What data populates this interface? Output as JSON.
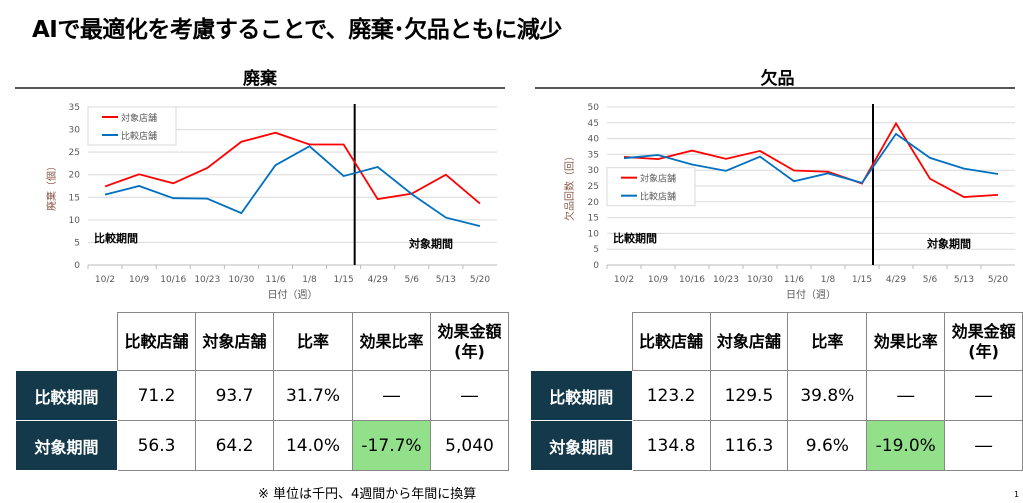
{
  "title": "AIで最適化を考慮することで、廃棄･欠品ともに減少",
  "footnote": "※ 単位は千円、4週間から年間に換算",
  "page_number": "1",
  "chart_data": [
    {
      "type": "line",
      "title": "廃棄",
      "xlabel": "日付（週）",
      "ylabel": "廃棄（個）",
      "ylim": [
        0,
        35
      ],
      "ystep": 5,
      "categories": [
        "10/2",
        "10/9",
        "10/16",
        "10/23",
        "10/30",
        "11/6",
        "1/8",
        "1/15",
        "4/29",
        "5/6",
        "5/13",
        "5/20"
      ],
      "divider_after_index": 7,
      "period_labels": [
        "比較期間",
        "対象期間"
      ],
      "legend": "top-left",
      "series": [
        {
          "name": "対象店舗",
          "color": "#ff0000",
          "values": [
            17.4,
            20.1,
            18.1,
            21.5,
            27.3,
            29.3,
            26.7,
            26.7,
            14.6,
            15.8,
            20.0,
            13.6
          ]
        },
        {
          "name": "比較店舗",
          "color": "#0070c0",
          "values": [
            15.6,
            17.5,
            14.8,
            14.7,
            11.5,
            22.1,
            26.3,
            19.7,
            21.7,
            15.7,
            10.5,
            8.6
          ]
        }
      ]
    },
    {
      "type": "line",
      "title": "欠品",
      "xlabel": "日付（週）",
      "ylabel": "欠品回数（回）",
      "ylim": [
        0,
        50
      ],
      "ystep": 5,
      "categories": [
        "10/2",
        "10/9",
        "10/16",
        "10/23",
        "10/30",
        "11/6",
        "1/8",
        "1/15",
        "4/29",
        "5/6",
        "5/13",
        "5/20"
      ],
      "divider_after_index": 7,
      "period_labels": [
        "比較期間",
        "対象期間"
      ],
      "legend": "middle-left",
      "series": [
        {
          "name": "対象店舗",
          "color": "#ff0000",
          "values": [
            34.2,
            33.5,
            36.2,
            33.6,
            36.1,
            29.9,
            29.5,
            25.8,
            44.8,
            27.3,
            21.5,
            22.2
          ]
        },
        {
          "name": "比較店舗",
          "color": "#0070c0",
          "values": [
            33.8,
            34.8,
            31.8,
            29.8,
            34.3,
            26.5,
            29.0,
            26.0,
            41.5,
            33.9,
            30.5,
            28.8
          ]
        }
      ]
    }
  ],
  "tables": [
    {
      "headers": [
        "比較店舗",
        "対象店舗",
        "比率",
        "効果比率",
        "効果金額\n(年)"
      ],
      "rows": [
        {
          "label": "比較期間",
          "cells": [
            "71.2",
            "93.7",
            "31.7%",
            "―",
            "―"
          ]
        },
        {
          "label": "対象期間",
          "cells": [
            "56.3",
            "64.2",
            "14.0%",
            "-17.7%",
            "5,040"
          ]
        }
      ]
    },
    {
      "headers": [
        "比較店舗",
        "対象店舗",
        "比率",
        "効果比率",
        "効果金額\n(年)"
      ],
      "rows": [
        {
          "label": "比較期間",
          "cells": [
            "123.2",
            "129.5",
            "39.8%",
            "―",
            "―"
          ]
        },
        {
          "label": "対象期間",
          "cells": [
            "134.8",
            "116.3",
            "9.6%",
            "-19.0%",
            "―"
          ]
        }
      ]
    }
  ]
}
